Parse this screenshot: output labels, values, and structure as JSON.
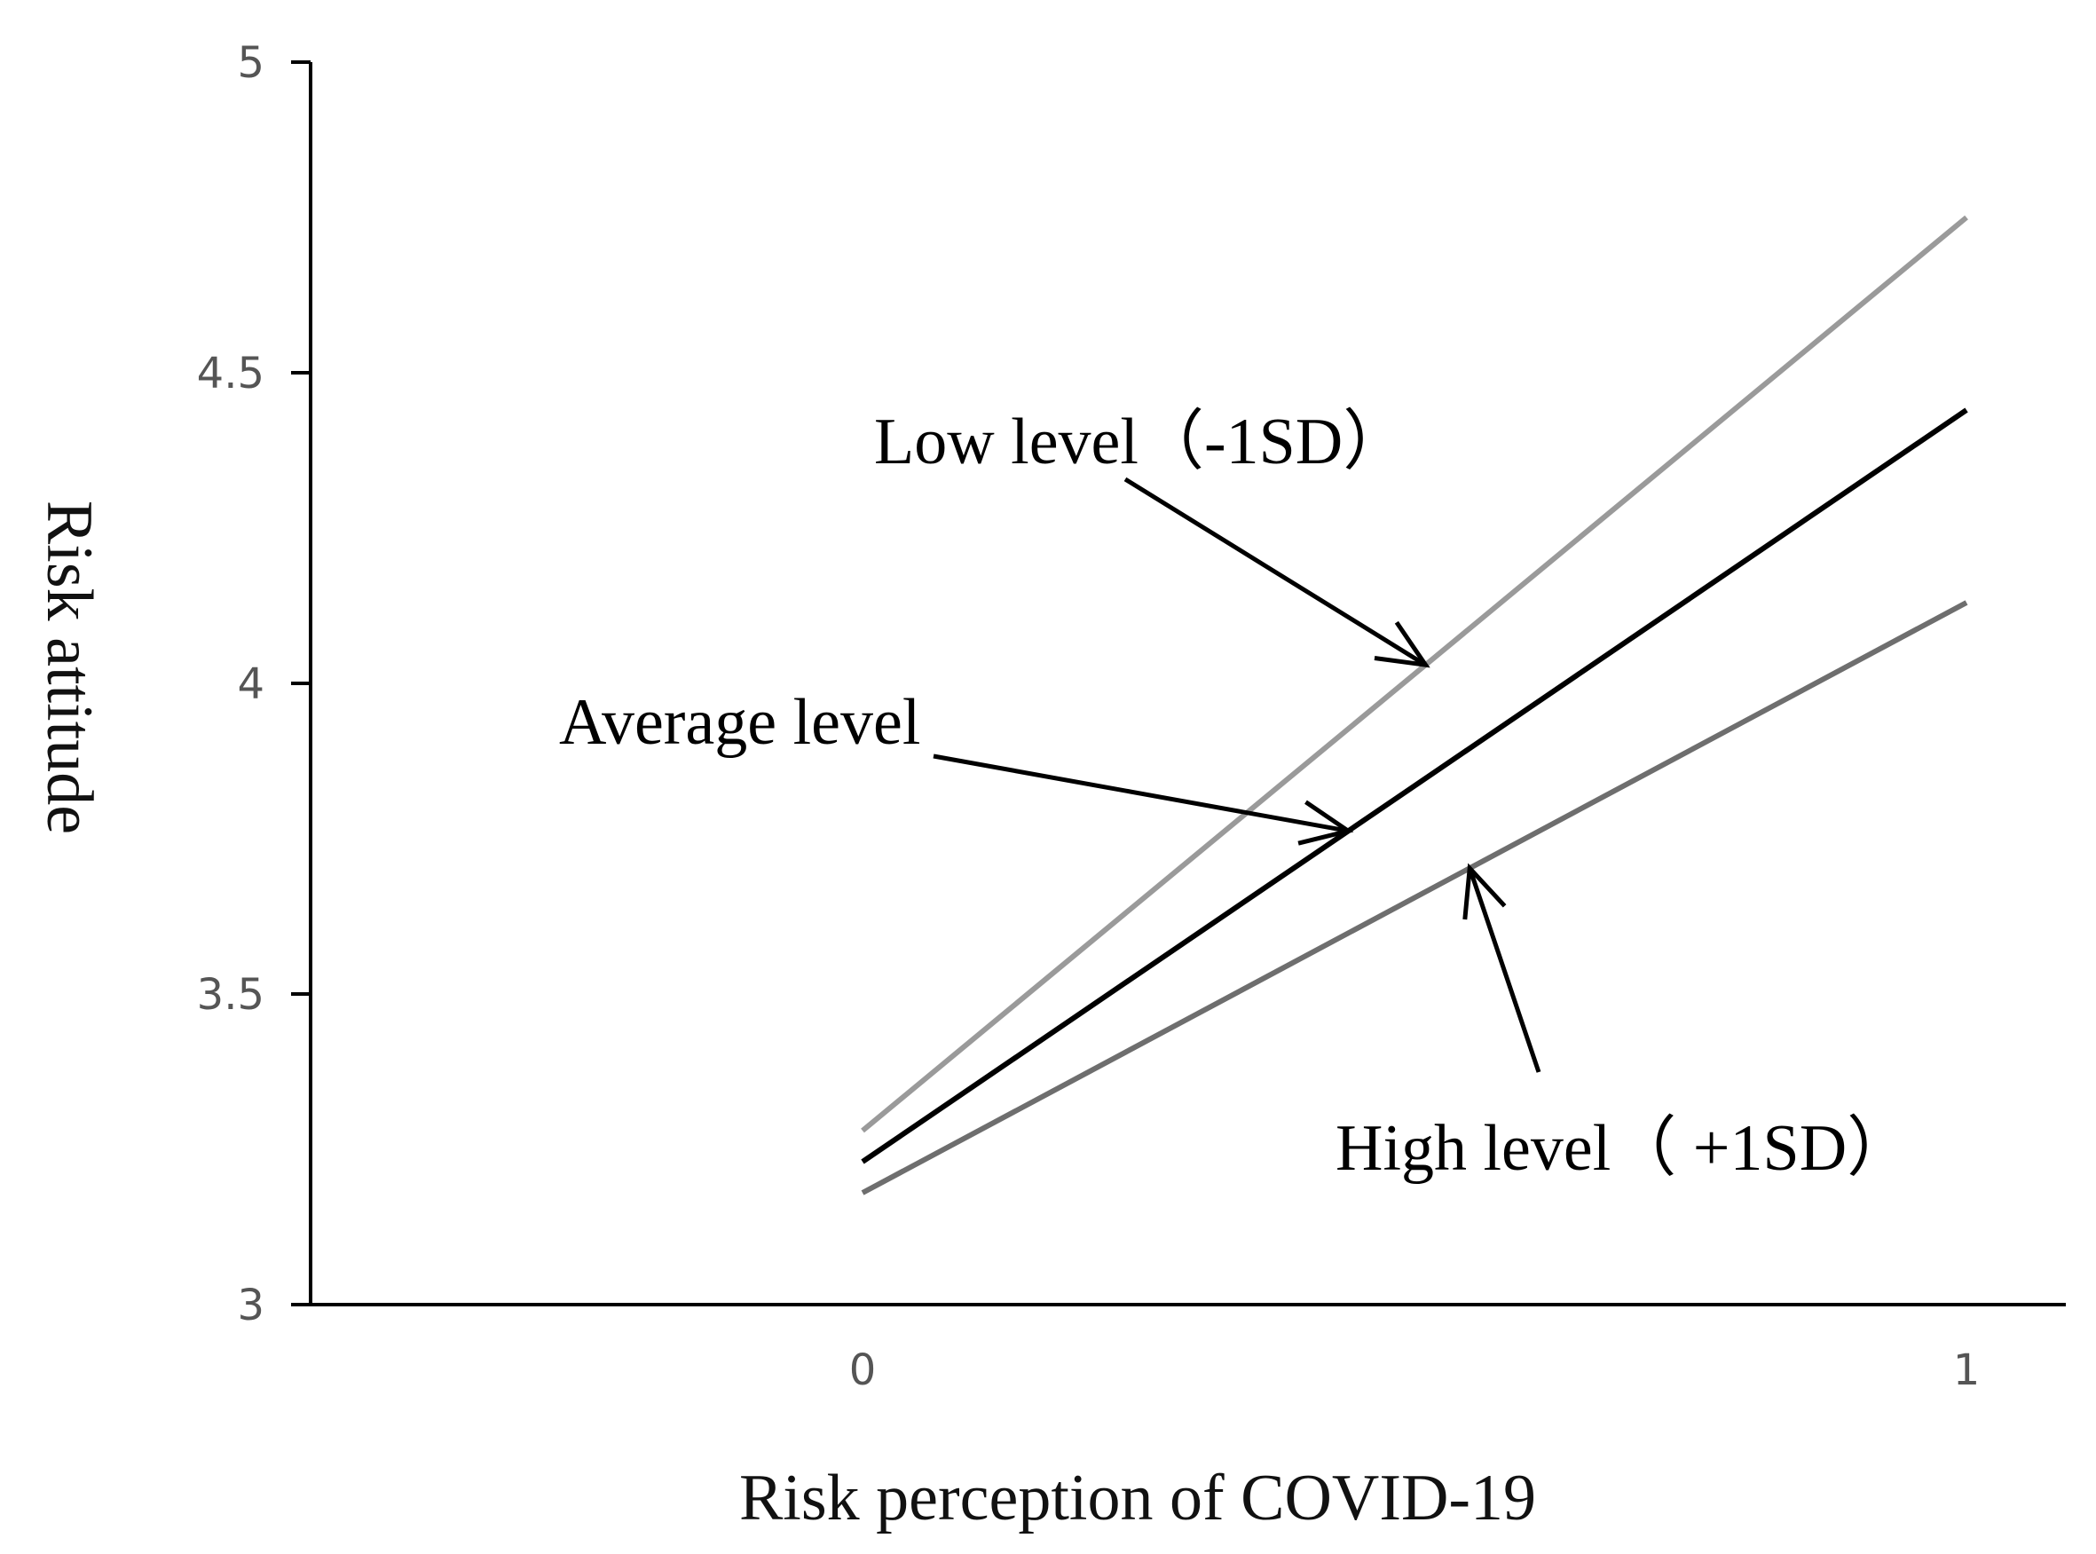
{
  "chart_data": {
    "type": "line",
    "title": "",
    "xlabel": "Risk perception of COVID-19",
    "ylabel": "Risk attitude",
    "x": [
      0,
      1
    ],
    "xlim": [
      -0.5,
      1.09
    ],
    "ylim": [
      3,
      5
    ],
    "xticks": [
      0,
      1
    ],
    "xtick_labels": [
      "0",
      "1"
    ],
    "yticks": [
      3,
      3.5,
      4,
      4.5,
      5
    ],
    "ytick_labels": [
      "3",
      "3.5",
      "4",
      "4.5",
      "5"
    ],
    "grid": false,
    "series": [
      {
        "name": "Low level（-1SD）",
        "values": [
          3.28,
          4.75
        ],
        "color": "#9a9a9a"
      },
      {
        "name": "Average level",
        "values": [
          3.23,
          4.44
        ],
        "color": "#000000"
      },
      {
        "name": "High level（ +1SD）",
        "values": [
          3.18,
          4.13
        ],
        "color": "#6e6e6e"
      }
    ],
    "annotations": [
      {
        "text": "Low level（-1SD）",
        "series": 0,
        "point_x": 0.51
      },
      {
        "text": "Average level",
        "series": 1,
        "point_x": 0.44
      },
      {
        "text": "High level（ +1SD）",
        "series": 2,
        "point_x": 0.55
      }
    ]
  }
}
